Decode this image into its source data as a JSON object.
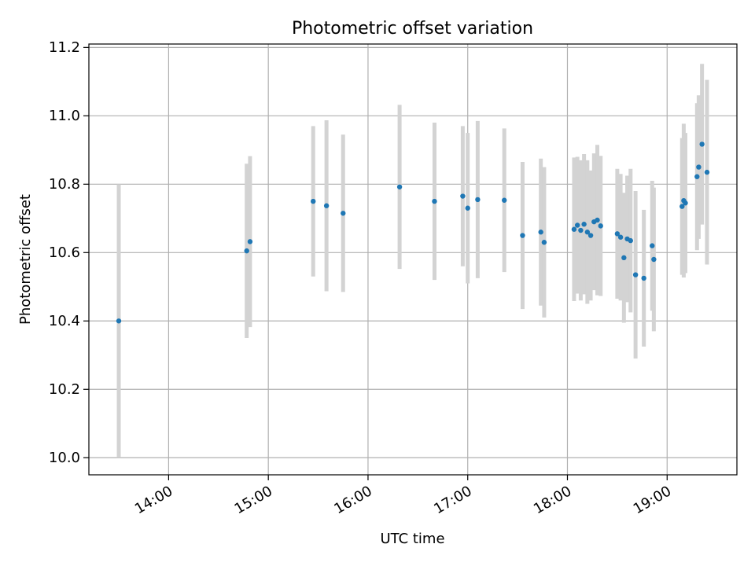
{
  "chart_data": {
    "type": "scatter",
    "title": "Photometric offset variation",
    "xlabel": "UTC time",
    "ylabel": "Photometric offset",
    "xlim": [
      "13:12",
      "19:42"
    ],
    "ylim": [
      9.95,
      11.21
    ],
    "xticks": [
      "14:00",
      "15:00",
      "16:00",
      "17:00",
      "18:00",
      "19:00"
    ],
    "yticks": [
      10.0,
      10.2,
      10.4,
      10.6,
      10.8,
      11.0,
      11.2
    ],
    "ytick_labels": [
      "10.0",
      "10.2",
      "10.4",
      "10.6",
      "10.8",
      "11.0",
      "11.2"
    ],
    "grid": true,
    "colors": {
      "points": "#1f77b4",
      "error_bars": "#d3d3d3",
      "grid": "#b0b0b0"
    },
    "points": [
      {
        "time": "13:30",
        "y": 10.4,
        "yerr": 0.4
      },
      {
        "time": "14:47",
        "y": 10.605,
        "yerr": 0.255
      },
      {
        "time": "14:49",
        "y": 10.632,
        "yerr": 0.25
      },
      {
        "time": "15:27",
        "y": 10.75,
        "yerr": 0.22
      },
      {
        "time": "15:35",
        "y": 10.737,
        "yerr": 0.25
      },
      {
        "time": "15:45",
        "y": 10.715,
        "yerr": 0.23
      },
      {
        "time": "16:19",
        "y": 10.792,
        "yerr": 0.24
      },
      {
        "time": "16:40",
        "y": 10.75,
        "yerr": 0.23
      },
      {
        "time": "16:57",
        "y": 10.765,
        "yerr": 0.205
      },
      {
        "time": "17:00",
        "y": 10.73,
        "yerr": 0.22
      },
      {
        "time": "17:06",
        "y": 10.755,
        "yerr": 0.23
      },
      {
        "time": "17:22",
        "y": 10.753,
        "yerr": 0.21
      },
      {
        "time": "17:33",
        "y": 10.65,
        "yerr": 0.215
      },
      {
        "time": "17:44",
        "y": 10.66,
        "yerr": 0.215
      },
      {
        "time": "17:46",
        "y": 10.63,
        "yerr": 0.22
      },
      {
        "time": "18:04",
        "y": 10.668,
        "yerr": 0.21
      },
      {
        "time": "18:06",
        "y": 10.68,
        "yerr": 0.2
      },
      {
        "time": "18:08",
        "y": 10.665,
        "yerr": 0.205
      },
      {
        "time": "18:10",
        "y": 10.683,
        "yerr": 0.205
      },
      {
        "time": "18:12",
        "y": 10.66,
        "yerr": 0.21
      },
      {
        "time": "18:14",
        "y": 10.65,
        "yerr": 0.19
      },
      {
        "time": "18:16",
        "y": 10.69,
        "yerr": 0.2
      },
      {
        "time": "18:18",
        "y": 10.695,
        "yerr": 0.22
      },
      {
        "time": "18:20",
        "y": 10.678,
        "yerr": 0.205
      },
      {
        "time": "18:30",
        "y": 10.655,
        "yerr": 0.19
      },
      {
        "time": "18:32",
        "y": 10.645,
        "yerr": 0.185
      },
      {
        "time": "18:34",
        "y": 10.585,
        "yerr": 0.19
      },
      {
        "time": "18:36",
        "y": 10.64,
        "yerr": 0.185
      },
      {
        "time": "18:38",
        "y": 10.635,
        "yerr": 0.21
      },
      {
        "time": "18:41",
        "y": 10.535,
        "yerr": 0.245
      },
      {
        "time": "18:46",
        "y": 10.525,
        "yerr": 0.2
      },
      {
        "time": "18:51",
        "y": 10.62,
        "yerr": 0.19
      },
      {
        "time": "18:52",
        "y": 10.58,
        "yerr": 0.21
      },
      {
        "time": "19:09",
        "y": 10.735,
        "yerr": 0.2
      },
      {
        "time": "19:10",
        "y": 10.752,
        "yerr": 0.225
      },
      {
        "time": "19:11",
        "y": 10.745,
        "yerr": 0.205
      },
      {
        "time": "19:18",
        "y": 10.822,
        "yerr": 0.215
      },
      {
        "time": "19:19",
        "y": 10.85,
        "yerr": 0.21
      },
      {
        "time": "19:21",
        "y": 10.917,
        "yerr": 0.235
      },
      {
        "time": "19:24",
        "y": 10.835,
        "yerr": 0.27
      }
    ]
  }
}
